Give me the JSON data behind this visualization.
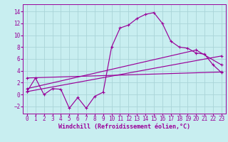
{
  "bg_color": "#c8eef0",
  "grid_color": "#aad4d8",
  "line_color": "#990099",
  "xlim": [
    -0.5,
    23.5
  ],
  "ylim": [
    -3.2,
    15.2
  ],
  "xticks": [
    0,
    1,
    2,
    3,
    4,
    5,
    6,
    7,
    8,
    9,
    10,
    11,
    12,
    13,
    14,
    15,
    16,
    17,
    18,
    19,
    20,
    21,
    22,
    23
  ],
  "yticks": [
    -2,
    0,
    2,
    4,
    6,
    8,
    10,
    12,
    14
  ],
  "series1_x": [
    0,
    1,
    2,
    3,
    4,
    5,
    6,
    7,
    8,
    9,
    10,
    11,
    12,
    13,
    14,
    15,
    16,
    17,
    18,
    19,
    20,
    21,
    22,
    23
  ],
  "series1_y": [
    0.5,
    2.8,
    0.0,
    1.0,
    0.9,
    -2.3,
    -0.5,
    -2.3,
    -0.3,
    0.4,
    8.0,
    11.2,
    11.7,
    12.8,
    13.5,
    13.8,
    12.0,
    9.0,
    8.0,
    7.8,
    7.0,
    6.8,
    5.0,
    3.7
  ],
  "series2_x": [
    0,
    23
  ],
  "series2_y": [
    2.8,
    3.8
  ],
  "series3_x": [
    0,
    23
  ],
  "series3_y": [
    0.5,
    6.5
  ],
  "series4_x": [
    0,
    20,
    23
  ],
  "series4_y": [
    1.0,
    7.5,
    5.0
  ],
  "xlabel": "Windchill (Refroidissement éolien,°C)",
  "xlabel_fontsize": 6.0,
  "tick_fontsize": 5.5,
  "linewidth": 0.85,
  "markersize": 3.0
}
